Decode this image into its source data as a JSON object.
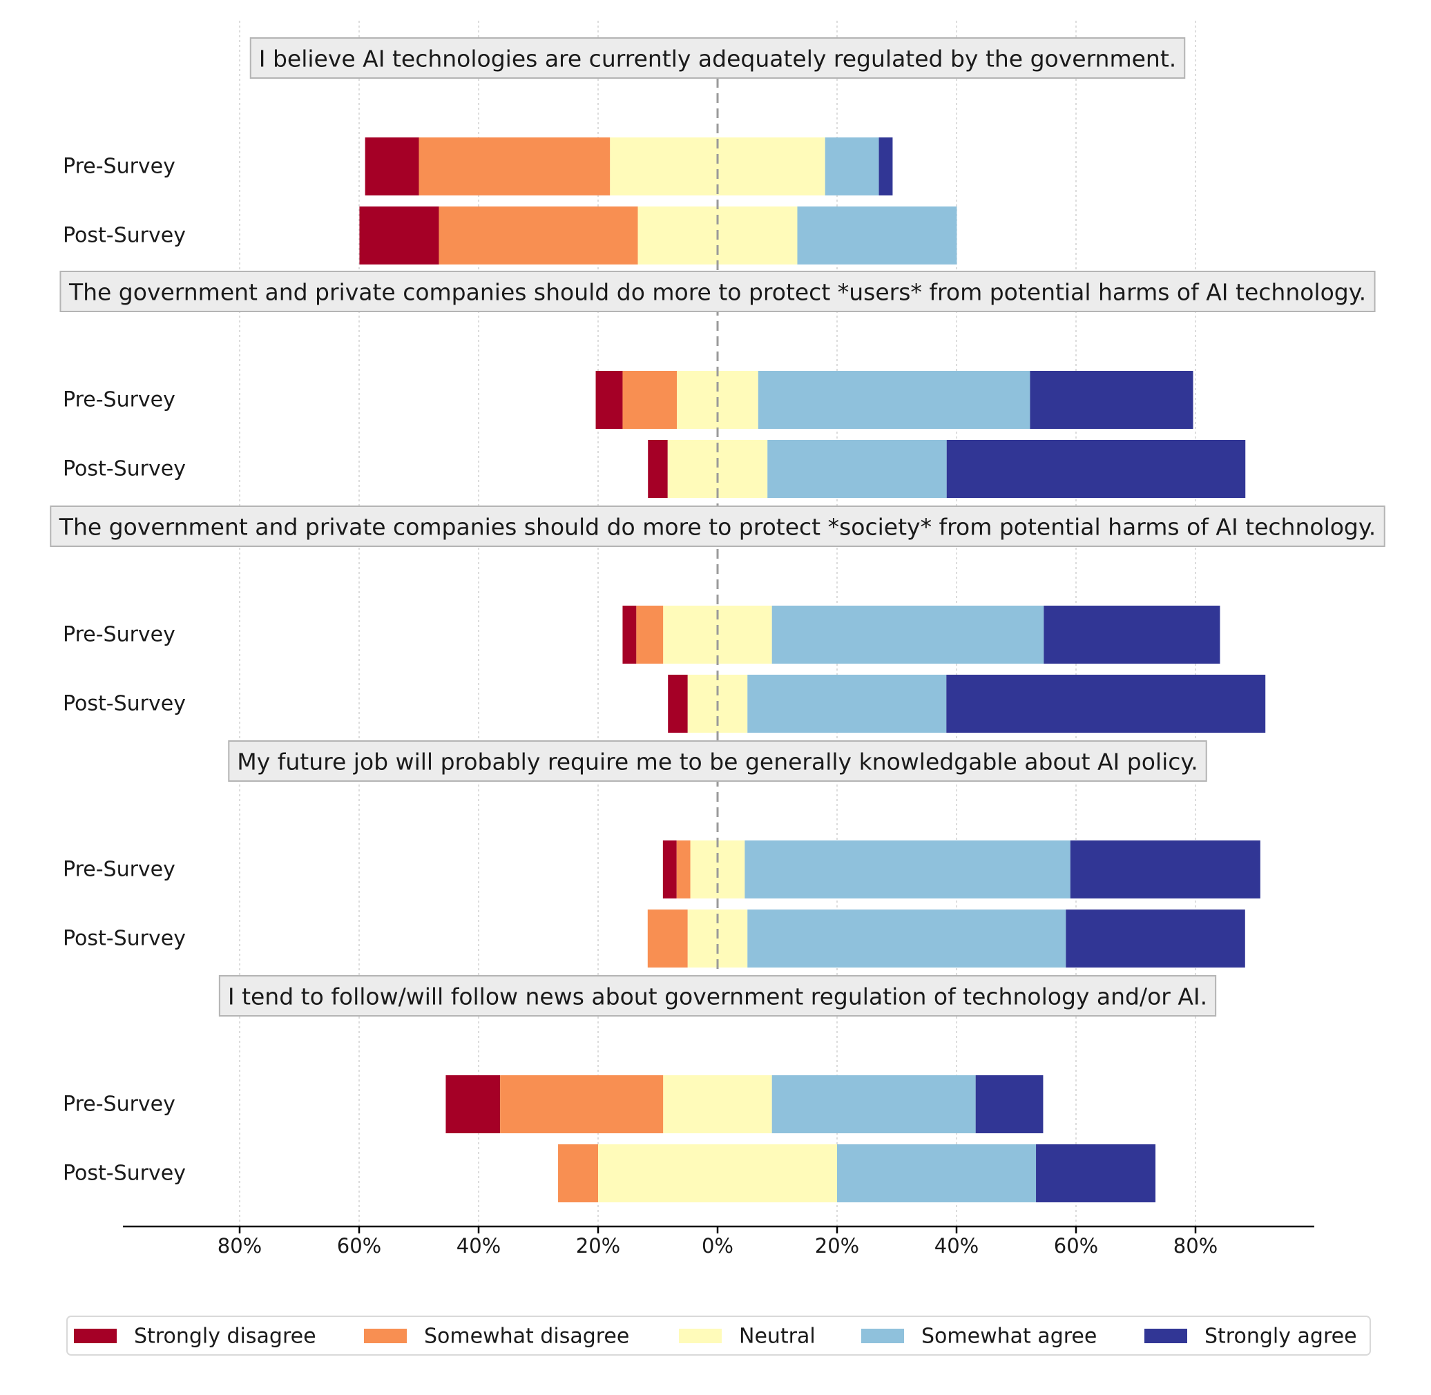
{
  "chart_data": {
    "type": "bar",
    "orientation": "horizontal",
    "stacked": true,
    "diverging": true,
    "xlim": [
      -100,
      100
    ],
    "x_tick_values": [
      -80,
      -60,
      -40,
      -20,
      0,
      20,
      40,
      60,
      80
    ],
    "x_tick_labels": [
      "80%",
      "60%",
      "40%",
      "20%",
      "0%",
      "20%",
      "40%",
      "60%",
      "80%"
    ],
    "grid": "x-dotted",
    "center_line": "dashed at 0%",
    "legend_position": "bottom",
    "categories": [
      "Strongly disagree",
      "Somewhat disagree",
      "Neutral",
      "Somewhat agree",
      "Strongly agree"
    ],
    "colors": [
      "#a50026",
      "#f88f52",
      "#fffbba",
      "#8fc1dc",
      "#313695"
    ],
    "questions": [
      {
        "title": "I believe AI technologies are currently adequately regulated by the government.",
        "rows": [
          {
            "label": "Pre-Survey",
            "values": [
              9,
              32,
              36,
              9,
              2.3
            ]
          },
          {
            "label": "Post-Survey",
            "values": [
              13.3,
              33.3,
              26.7,
              26.7,
              0
            ]
          }
        ]
      },
      {
        "title": "The government and private companies should do more to protect *users* from potential harms of AI technology.",
        "rows": [
          {
            "label": "Pre-Survey",
            "values": [
              4.5,
              9.1,
              13.6,
              45.5,
              27.3
            ]
          },
          {
            "label": "Post-Survey",
            "values": [
              3.3,
              0,
              16.7,
              30,
              50
            ]
          }
        ]
      },
      {
        "title": "The government and private companies should do more to protect *society* from potential harms of AI technology.",
        "rows": [
          {
            "label": "Pre-Survey",
            "values": [
              2.3,
              4.5,
              18.2,
              45.5,
              29.5
            ]
          },
          {
            "label": "Post-Survey",
            "values": [
              3.3,
              0,
              10,
              33.3,
              53.4
            ]
          }
        ]
      },
      {
        "title": "My future job will probably require me to be generally knowledgable about AI policy.",
        "rows": [
          {
            "label": "Pre-Survey",
            "values": [
              2.3,
              2.3,
              9.1,
              54.5,
              31.8
            ]
          },
          {
            "label": "Post-Survey",
            "values": [
              0,
              6.7,
              10,
              53.3,
              30
            ]
          }
        ]
      },
      {
        "title": "I tend to follow/will follow news about government regulation of technology and/or AI.",
        "rows": [
          {
            "label": "Pre-Survey",
            "values": [
              9.1,
              27.3,
              18.2,
              34.1,
              11.3
            ]
          },
          {
            "label": "Post-Survey",
            "values": [
              0,
              6.7,
              40,
              33.3,
              20
            ]
          }
        ]
      }
    ]
  }
}
